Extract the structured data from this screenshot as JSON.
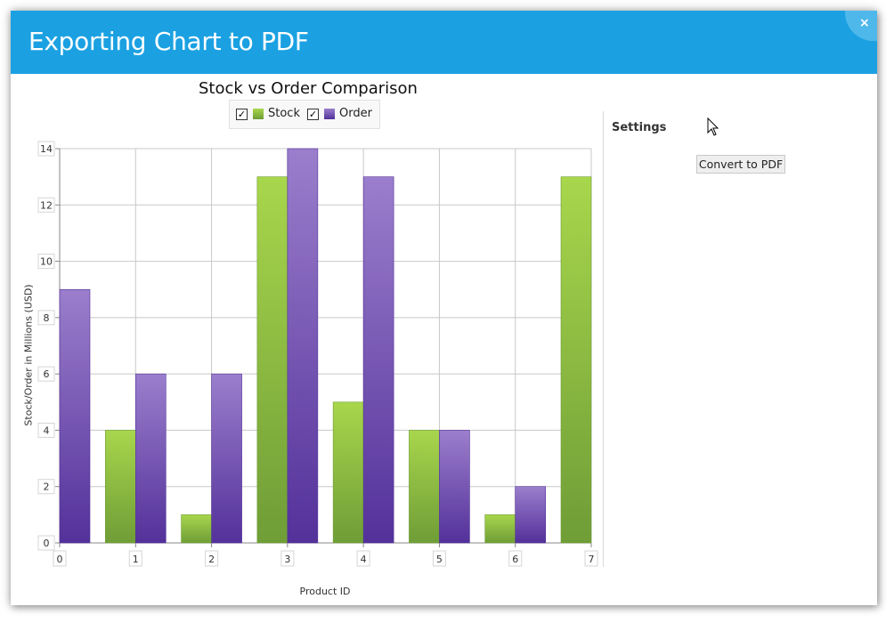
{
  "window": {
    "title": "Exporting Chart to PDF",
    "close_glyph": "×",
    "accent_color": "#1ba1e2"
  },
  "chart_data": {
    "type": "bar",
    "title": "Stock vs Order Comparison",
    "xlabel": "Product ID",
    "ylabel": "Stock/Order in Millions (USD)",
    "categories": [
      "0",
      "1",
      "2",
      "3",
      "4",
      "5",
      "6",
      "7"
    ],
    "series": [
      {
        "name": "Stock",
        "values": [
          0,
          4,
          1,
          13,
          5,
          4,
          1,
          13
        ],
        "color_top": "#a8d64c",
        "color_bottom": "#6f9d37"
      },
      {
        "name": "Order",
        "values": [
          9,
          6,
          6,
          14,
          13,
          4,
          2,
          0
        ],
        "color_top": "#9b7ecc",
        "color_bottom": "#53319a"
      }
    ],
    "yticks": [
      "0",
      "2",
      "4",
      "6",
      "8",
      "10",
      "12",
      "14"
    ],
    "ylim": [
      0,
      14
    ],
    "grid": true,
    "legend": {
      "placement": "top-center",
      "check_glyph": "✓"
    }
  },
  "settings": {
    "title": "Settings",
    "convert_label": "Convert to PDF"
  },
  "icons": [
    "close-icon",
    "checkbox-checked-icon",
    "mouse-pointer-icon"
  ]
}
